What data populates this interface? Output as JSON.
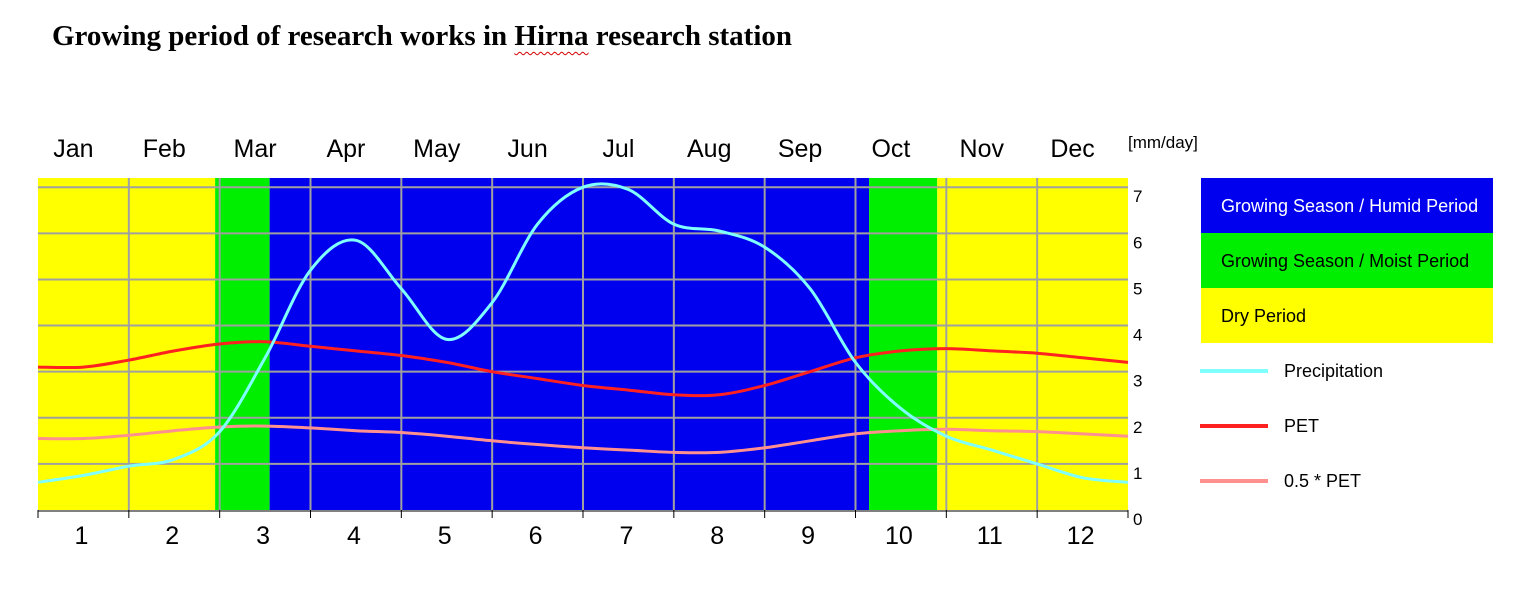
{
  "title": {
    "before": "Growing period of research works in ",
    "highlight": "Hirna",
    "after": " research station"
  },
  "chart_data": {
    "type": "line",
    "month_labels": [
      "Jan",
      "Feb",
      "Mar",
      "Apr",
      "May",
      "Jun",
      "Jul",
      "Aug",
      "Sep",
      "Oct",
      "Nov",
      "Dec"
    ],
    "x_tick_labels": [
      "1",
      "2",
      "3",
      "4",
      "5",
      "6",
      "7",
      "8",
      "9",
      "10",
      "11",
      "12"
    ],
    "y_unit_label": "[mm/day]",
    "y_tick_labels": [
      "0",
      "1",
      "2",
      "3",
      "4",
      "5",
      "6",
      "7"
    ],
    "ylim": [
      0,
      7.2
    ],
    "xlim": [
      0.5,
      12.5
    ],
    "grid": true,
    "legend_position": "right",
    "periods": [
      {
        "name": "Dry Period",
        "start": 0.5,
        "end": 2.45,
        "color": "#ffff00"
      },
      {
        "name": "Growing Season / Moist Period",
        "start": 2.45,
        "end": 3.05,
        "color": "#00ee00"
      },
      {
        "name": "Growing Season / Humid Period",
        "start": 3.05,
        "end": 9.65,
        "color": "#0000ee"
      },
      {
        "name": "Growing Season / Moist Period",
        "start": 9.65,
        "end": 10.4,
        "color": "#00ee00"
      },
      {
        "name": "Dry Period",
        "start": 10.4,
        "end": 12.5,
        "color": "#ffff00"
      }
    ],
    "legend_boxes": [
      {
        "label": "Growing Season / Humid Period",
        "color": "#0000ee",
        "text_color": "#ffffff"
      },
      {
        "label": "Growing Season / Moist Period",
        "color": "#00ee00",
        "text_color": "#000000"
      },
      {
        "label": "Dry Period",
        "color": "#ffff00",
        "text_color": "#000000"
      }
    ],
    "legend_lines": [
      {
        "label": "Precipitation",
        "color": "#80ffff"
      },
      {
        "label": "PET",
        "color": "#ff2020"
      },
      {
        "label": "0.5 * PET",
        "color": "#ff9090"
      }
    ],
    "series": [
      {
        "name": "Precipitation",
        "color": "#80ffff",
        "x": [
          0.5,
          1.0,
          1.5,
          2.0,
          2.5,
          3.0,
          3.5,
          4.0,
          4.5,
          5.0,
          5.5,
          6.0,
          6.5,
          7.0,
          7.5,
          8.0,
          8.5,
          9.0,
          9.5,
          10.0,
          10.5,
          11.0,
          11.5,
          12.0,
          12.5
        ],
        "values": [
          0.6,
          0.75,
          0.95,
          1.1,
          1.7,
          3.3,
          5.2,
          5.85,
          4.8,
          3.7,
          4.5,
          6.2,
          7.0,
          6.95,
          6.2,
          6.05,
          5.7,
          4.8,
          3.2,
          2.2,
          1.6,
          1.3,
          1.0,
          0.7,
          0.6
        ]
      },
      {
        "name": "PET",
        "color": "#ff2020",
        "x": [
          0.5,
          1.0,
          1.5,
          2.0,
          2.5,
          3.0,
          3.5,
          4.0,
          4.5,
          5.0,
          5.5,
          6.0,
          6.5,
          7.0,
          7.5,
          8.0,
          8.5,
          9.0,
          9.5,
          10.0,
          10.5,
          11.0,
          11.5,
          12.0,
          12.5
        ],
        "values": [
          3.1,
          3.1,
          3.25,
          3.45,
          3.6,
          3.65,
          3.55,
          3.45,
          3.35,
          3.2,
          3.0,
          2.85,
          2.7,
          2.6,
          2.5,
          2.5,
          2.7,
          3.0,
          3.3,
          3.45,
          3.5,
          3.45,
          3.4,
          3.3,
          3.2
        ]
      },
      {
        "name": "0.5 * PET",
        "color": "#ff9090",
        "x": [
          0.5,
          1.0,
          1.5,
          2.0,
          2.5,
          3.0,
          3.5,
          4.0,
          4.5,
          5.0,
          5.5,
          6.0,
          6.5,
          7.0,
          7.5,
          8.0,
          8.5,
          9.0,
          9.5,
          10.0,
          10.5,
          11.0,
          11.5,
          12.0,
          12.5
        ],
        "values": [
          1.55,
          1.55,
          1.62,
          1.72,
          1.8,
          1.82,
          1.78,
          1.72,
          1.68,
          1.6,
          1.5,
          1.42,
          1.35,
          1.3,
          1.25,
          1.25,
          1.35,
          1.5,
          1.65,
          1.72,
          1.75,
          1.72,
          1.7,
          1.65,
          1.6
        ]
      }
    ]
  }
}
